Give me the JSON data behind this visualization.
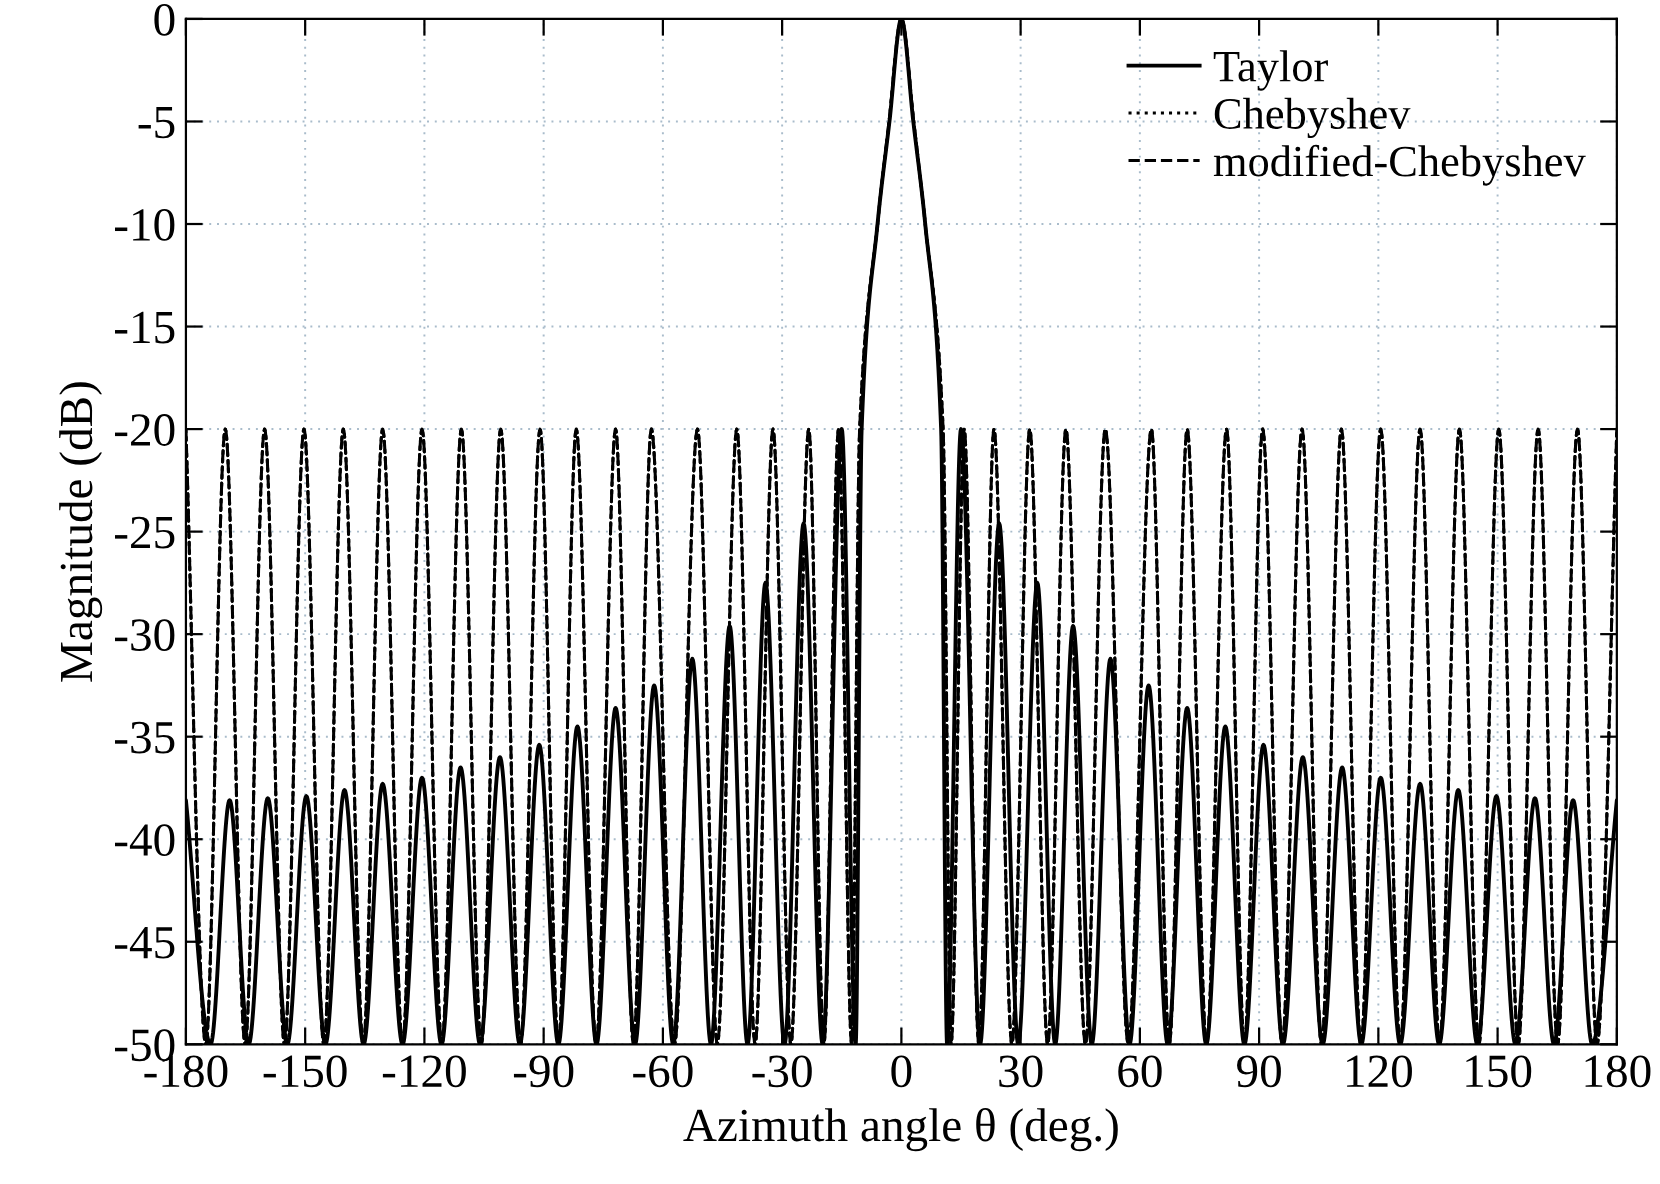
{
  "chart_data": {
    "type": "line",
    "xlabel": "Azimuth angle θ (deg.)",
    "ylabel": "Magnitude (dB)",
    "xlim": [
      -180,
      180
    ],
    "xticks": [
      -180,
      -150,
      -120,
      -90,
      -60,
      -30,
      0,
      30,
      60,
      90,
      120,
      150,
      180
    ],
    "ylim": [
      -50,
      0
    ],
    "yticks": [
      -50,
      -45,
      -40,
      -35,
      -30,
      -25,
      -20,
      -15,
      -10,
      -5,
      0
    ],
    "grid": true,
    "legend": "top right",
    "series": [
      {
        "name": "Taylor",
        "color": "#000000",
        "line_style": "solid",
        "x": [
          -180,
          -173.8,
          -169,
          -164.2,
          -159.4,
          -154.5,
          -149.7,
          -144.9,
          -140.1,
          -135.3,
          -130.5,
          -125.5,
          -120.6,
          -115.7,
          -110.9,
          -106,
          -101,
          -96,
          -91.1,
          -86.3,
          -81.5,
          -76.7,
          -71.9,
          -67,
          -62.2,
          -57.4,
          -52.6,
          -47.9,
          -43.2,
          -38.7,
          -34.2,
          -29.4,
          -24.6,
          -19.8,
          -15,
          -11.5,
          -10,
          -6,
          -3,
          0,
          3,
          6,
          10,
          11.5,
          15,
          19.8,
          24.6,
          29.4,
          34.2,
          38.7,
          43.2,
          47.9,
          52.6,
          57.4,
          62.2,
          67,
          71.9,
          76.7,
          81.5,
          86.3,
          91.1,
          96,
          101,
          106,
          110.9,
          115.7,
          120.6,
          125.5,
          130.5,
          135.3,
          140.1,
          144.9,
          149.7,
          154.5,
          159.4,
          164.2,
          169,
          173.8,
          180
        ],
        "values": [
          -38.1,
          -50,
          -38.1,
          -50,
          -38.0,
          -50,
          -37.9,
          -50,
          -37.6,
          -50,
          -37.3,
          -50,
          -37.0,
          -50,
          -36.5,
          -50,
          -36.0,
          -50,
          -35.4,
          -50,
          -34.5,
          -50,
          -33.6,
          -50,
          -32.5,
          -50,
          -31.2,
          -50,
          -29.6,
          -50,
          -27.5,
          -50,
          -24.6,
          -50,
          -20,
          -50,
          -20,
          -10,
          -5,
          0,
          -5,
          -10,
          -20,
          -50,
          -20,
          -50,
          -24.6,
          -50,
          -27.5,
          -50,
          -29.6,
          -50,
          -31.2,
          -50,
          -32.5,
          -50,
          -33.6,
          -50,
          -34.5,
          -50,
          -35.4,
          -50,
          -36.0,
          -50,
          -36.5,
          -50,
          -37.0,
          -50,
          -37.3,
          -50,
          -37.6,
          -50,
          -37.9,
          -50,
          -38.0,
          -50,
          -38.1,
          -50,
          -38.1
        ]
      },
      {
        "name": "Chebyshev",
        "color": "#000000",
        "line_style": "dotted",
        "x": [
          -180,
          -175,
          -170.1,
          -165.1,
          -160.2,
          -155.2,
          -150.3,
          -145.3,
          -140.4,
          -135.4,
          -130.5,
          -125.5,
          -120.6,
          -115.6,
          -110.7,
          -105.7,
          -100.8,
          -95.8,
          -90.9,
          -86.3,
          -81.8,
          -76.8,
          -71.9,
          -67.4,
          -62.9,
          -57.1,
          -51.3,
          -46.3,
          -41.4,
          -36.8,
          -32.3,
          -27.8,
          -23.3,
          -19.5,
          -15.8,
          -12.5,
          -10.5,
          -6,
          -3.1,
          0,
          3.1,
          6,
          10.5,
          12.5,
          15.8,
          19.5,
          23.3,
          27.8,
          32.3,
          36.8,
          41.4,
          46.3,
          51.3,
          57.1,
          62.9,
          67.4,
          71.9,
          76.8,
          81.8,
          86.3,
          90.9,
          95.8,
          100.8,
          105.7,
          110.7,
          115.6,
          120.6,
          125.5,
          130.5,
          135.4,
          140.4,
          145.3,
          150.3,
          155.2,
          160.2,
          165.1,
          170.1,
          175,
          180
        ],
        "values": [
          -20,
          -50,
          -20,
          -50,
          -20,
          -50,
          -20,
          -50,
          -20,
          -50,
          -20,
          -50,
          -20,
          -50,
          -20,
          -50,
          -20,
          -50,
          -20,
          -50,
          -20,
          -50,
          -20,
          -50,
          -20,
          -50,
          -20,
          -50,
          -20,
          -50,
          -20,
          -50,
          -20,
          -50,
          -20,
          -50,
          -20,
          -10,
          -5,
          0,
          -5,
          -10,
          -20,
          -50,
          -20,
          -50,
          -20,
          -50,
          -20,
          -50,
          -20,
          -50,
          -20,
          -50,
          -20,
          -50,
          -20,
          -50,
          -20,
          -50,
          -20,
          -50,
          -20,
          -50,
          -20,
          -50,
          -20,
          -50,
          -20,
          -50,
          -20,
          -50,
          -20,
          -50,
          -20,
          -50,
          -20,
          -50,
          -20
        ]
      },
      {
        "name": "modified-Chebyshev",
        "color": "#000000",
        "line_style": "dashed",
        "x": [
          -180,
          -175,
          -170.1,
          -165.1,
          -160.2,
          -155.2,
          -150.3,
          -145.3,
          -140.4,
          -135.4,
          -130.5,
          -125.5,
          -120.6,
          -115.6,
          -110.7,
          -105.7,
          -100.8,
          -95.8,
          -90.9,
          -86.3,
          -81.8,
          -76.8,
          -71.9,
          -67.4,
          -62.9,
          -57.1,
          -51.3,
          -46.3,
          -41.4,
          -36.8,
          -32.3,
          -27.8,
          -23.3,
          -19.5,
          -15.8,
          -12.5,
          -10.5,
          -6,
          -3.1,
          0,
          3.1,
          6,
          10.5,
          12.5,
          15.8,
          19.5,
          23.3,
          27.8,
          32.3,
          36.8,
          41.4,
          46.3,
          51.3,
          57.1,
          62.9,
          67.4,
          71.9,
          76.8,
          81.8,
          86.3,
          90.9,
          95.8,
          100.8,
          105.7,
          110.7,
          115.6,
          120.6,
          125.5,
          130.5,
          135.4,
          140.4,
          145.3,
          150.3,
          155.2,
          160.2,
          165.1,
          170.1,
          175,
          180
        ],
        "values": [
          -20,
          -50,
          -20,
          -50,
          -20,
          -50,
          -20,
          -50,
          -20,
          -50,
          -20,
          -50,
          -20,
          -50,
          -20,
          -50,
          -20,
          -50,
          -20,
          -50,
          -20,
          -50,
          -20,
          -50,
          -20,
          -50,
          -20,
          -50,
          -20,
          -50,
          -20,
          -50,
          -20,
          -50,
          -20,
          -50,
          -20,
          -10,
          -5,
          0,
          -5,
          -10,
          -20,
          -50,
          -20,
          -50,
          -20,
          -50,
          -20,
          -50,
          -20,
          -50,
          -20,
          -50,
          -20,
          -50,
          -20,
          -50,
          -20,
          -50,
          -20,
          -50,
          -20,
          -50,
          -20,
          -50,
          -20,
          -50,
          -20,
          -50,
          -20,
          -50,
          -20,
          -50,
          -20,
          -50,
          -20,
          -50,
          -20
        ]
      }
    ]
  }
}
